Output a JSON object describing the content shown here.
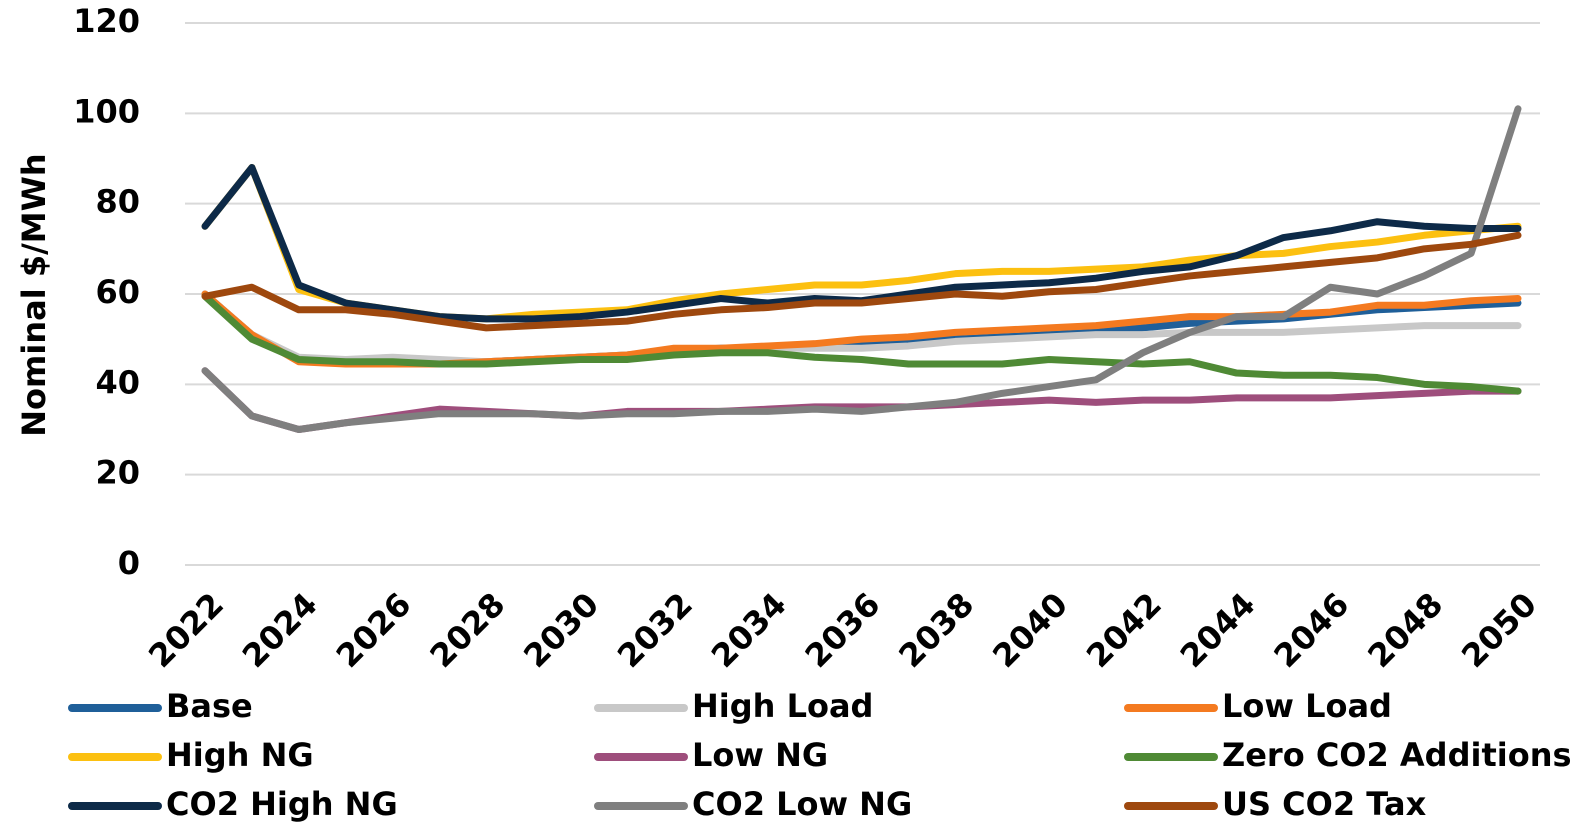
{
  "chart_data": {
    "type": "line",
    "ylabel": "Nominal $/MWh",
    "x": [
      2022,
      2023,
      2024,
      2025,
      2026,
      2027,
      2028,
      2029,
      2030,
      2031,
      2032,
      2033,
      2034,
      2035,
      2036,
      2037,
      2038,
      2039,
      2040,
      2041,
      2042,
      2043,
      2044,
      2045,
      2046,
      2047,
      2048,
      2049,
      2050
    ],
    "xlim": [
      2022,
      2050
    ],
    "xticks": [
      2022,
      2024,
      2026,
      2028,
      2030,
      2032,
      2034,
      2036,
      2038,
      2040,
      2042,
      2044,
      2046,
      2048,
      2050
    ],
    "ylim": [
      0,
      120
    ],
    "yticks": [
      0,
      20,
      40,
      60,
      80,
      100,
      120
    ],
    "grid": true,
    "legend": "bottom",
    "series": [
      {
        "name": "Base",
        "color": "#1f5f99",
        "values": [
          60,
          51,
          45.5,
          45,
          45,
          45,
          45,
          45.5,
          46,
          46.5,
          47.5,
          48,
          48,
          48.5,
          49,
          49.5,
          50,
          50.5,
          51,
          51.5,
          52.5,
          53.5,
          54,
          54.5,
          55.5,
          56.5,
          57,
          57.5,
          58
        ]
      },
      {
        "name": "High Load",
        "color": "#c8c8c8",
        "values": [
          60,
          51,
          46,
          45.5,
          46,
          45.5,
          45,
          45.5,
          46,
          46.5,
          47.5,
          47.5,
          48,
          48,
          48,
          48.5,
          49.5,
          50,
          50.5,
          51,
          51,
          51.5,
          51.5,
          51.5,
          52,
          52.5,
          53,
          53,
          53
        ]
      },
      {
        "name": "Low Load",
        "color": "#f47a20",
        "values": [
          60,
          51,
          45,
          44.5,
          44.5,
          44.5,
          45,
          45.5,
          46,
          46.5,
          48,
          48,
          48.5,
          49,
          50,
          50.5,
          51.5,
          52,
          52.5,
          53,
          54,
          55,
          55,
          55.5,
          56,
          57.5,
          57.5,
          58.5,
          59
        ]
      },
      {
        "name": "High NG",
        "color": "#fcc010",
        "values": [
          75,
          88,
          61,
          58,
          56.5,
          55,
          54.5,
          55.5,
          56,
          56.5,
          58.5,
          60,
          61,
          62,
          62,
          63,
          64.5,
          65,
          65,
          65.5,
          66,
          67.5,
          68.5,
          69,
          70.5,
          71.5,
          73,
          74,
          75
        ]
      },
      {
        "name": "Low NG",
        "color": "#9e4e7c",
        "values": [
          43,
          33,
          30,
          31.5,
          33,
          34.5,
          34,
          33.5,
          33,
          34,
          34,
          34,
          34.5,
          35,
          35,
          35,
          35.5,
          36,
          36.5,
          36,
          36.5,
          36.5,
          37,
          37,
          37,
          37.5,
          38,
          38.5,
          38.5
        ]
      },
      {
        "name": "Zero CO2 Additions",
        "color": "#4f8a35",
        "values": [
          59.5,
          50,
          45.5,
          45,
          45,
          44.5,
          44.5,
          45,
          45.5,
          45.5,
          46.5,
          47,
          47,
          46,
          45.5,
          44.5,
          44.5,
          44.5,
          45.5,
          45,
          44.5,
          45,
          42.5,
          42,
          42,
          41.5,
          40,
          39.5,
          38.5
        ]
      },
      {
        "name": "CO2 High NG",
        "color": "#0d2a48",
        "values": [
          75,
          88,
          62,
          58,
          56.5,
          55,
          54.5,
          54.5,
          55,
          56,
          57.5,
          59,
          58,
          59,
          58.5,
          60,
          61.5,
          62,
          62.5,
          63.5,
          65,
          66,
          68.5,
          72.5,
          74,
          76,
          75,
          74.5,
          74.5
        ]
      },
      {
        "name": "CO2 Low NG",
        "color": "#7f7f7f",
        "values": [
          43,
          33,
          30,
          31.5,
          32.5,
          33.5,
          33.5,
          33.5,
          33,
          33.5,
          33.5,
          34,
          34,
          34.5,
          34,
          35,
          36,
          38,
          39.5,
          41,
          47,
          51.5,
          55,
          55,
          61.5,
          60,
          64,
          69,
          101
        ]
      },
      {
        "name": "US CO2 Tax",
        "color": "#9e480e",
        "values": [
          59.5,
          61.5,
          56.5,
          56.5,
          55.5,
          54,
          52.5,
          53,
          53.5,
          54,
          55.5,
          56.5,
          57,
          58,
          58,
          59,
          60,
          59.5,
          60.5,
          61,
          62.5,
          64,
          65,
          66,
          67,
          68,
          70,
          71,
          73
        ]
      }
    ]
  }
}
